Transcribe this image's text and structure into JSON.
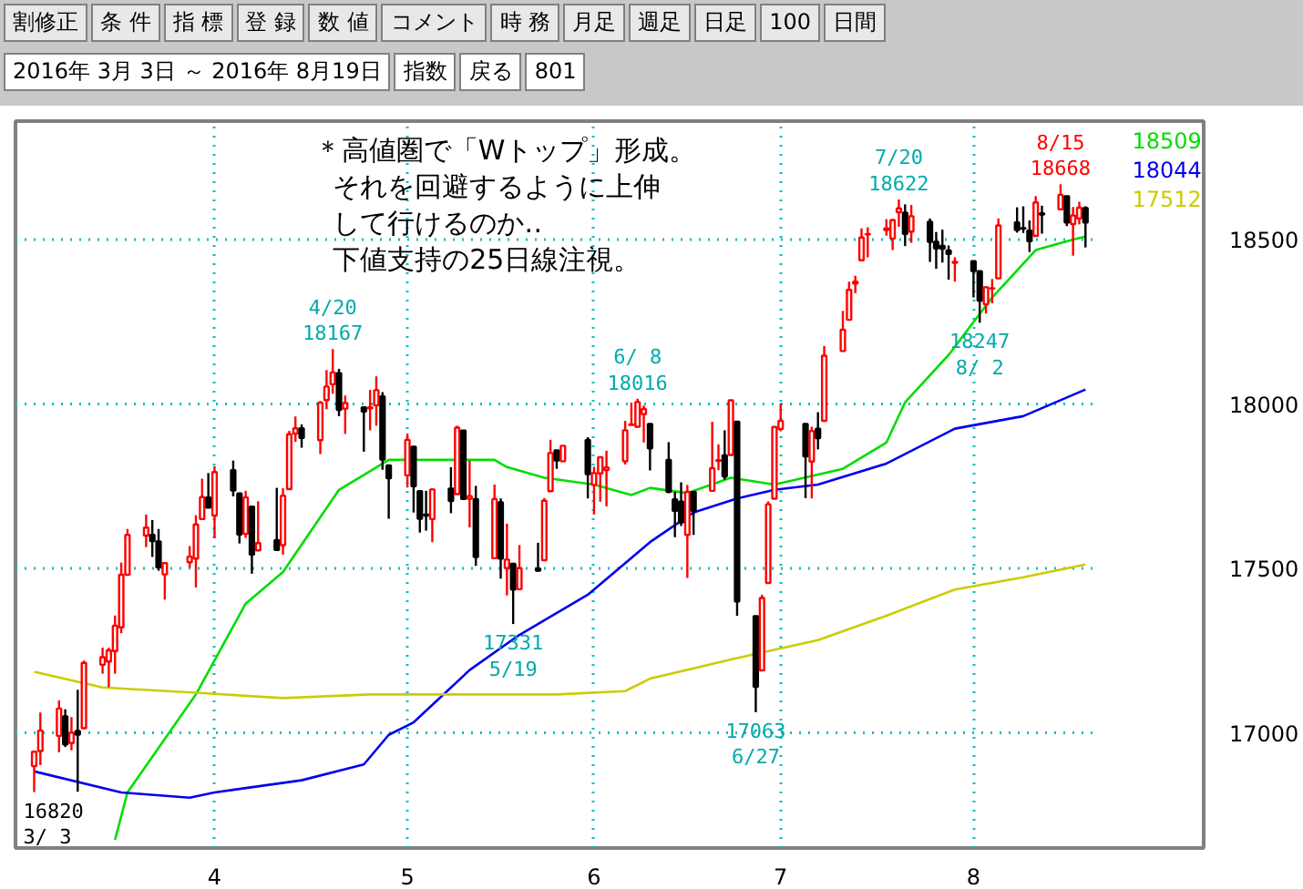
{
  "chart_data": {
    "type": "candlestick",
    "x": [
      "2016-03-03",
      "2016-03-04",
      "2016-03-07",
      "2016-03-08",
      "2016-03-09",
      "2016-03-10",
      "2016-03-11",
      "2016-03-14",
      "2016-03-15",
      "2016-03-16",
      "2016-03-17",
      "2016-03-18",
      "2016-03-21",
      "2016-03-22",
      "2016-03-23",
      "2016-03-24",
      "2016-03-28",
      "2016-03-29",
      "2016-03-30",
      "2016-03-31",
      "2016-04-01",
      "2016-04-04",
      "2016-04-05",
      "2016-04-06",
      "2016-04-07",
      "2016-04-08",
      "2016-04-11",
      "2016-04-12",
      "2016-04-13",
      "2016-04-14",
      "2016-04-15",
      "2016-04-18",
      "2016-04-19",
      "2016-04-20",
      "2016-04-21",
      "2016-04-22",
      "2016-04-25",
      "2016-04-26",
      "2016-04-27",
      "2016-04-28",
      "2016-04-29",
      "2016-05-02",
      "2016-05-03",
      "2016-05-04",
      "2016-05-05",
      "2016-05-06",
      "2016-05-09",
      "2016-05-10",
      "2016-05-11",
      "2016-05-12",
      "2016-05-13",
      "2016-05-16",
      "2016-05-17",
      "2016-05-18",
      "2016-05-19",
      "2016-05-20",
      "2016-05-23",
      "2016-05-24",
      "2016-05-25",
      "2016-05-26",
      "2016-05-27",
      "2016-05-31",
      "2016-06-01",
      "2016-06-02",
      "2016-06-03",
      "2016-06-06",
      "2016-06-07",
      "2016-06-08",
      "2016-06-09",
      "2016-06-10",
      "2016-06-13",
      "2016-06-14",
      "2016-06-15",
      "2016-06-16",
      "2016-06-17",
      "2016-06-20",
      "2016-06-21",
      "2016-06-22",
      "2016-06-23",
      "2016-06-24",
      "2016-06-27",
      "2016-06-28",
      "2016-06-29",
      "2016-06-30",
      "2016-07-01",
      "2016-07-05",
      "2016-07-06",
      "2016-07-07",
      "2016-07-08",
      "2016-07-11",
      "2016-07-12",
      "2016-07-13",
      "2016-07-14",
      "2016-07-15",
      "2016-07-18",
      "2016-07-19",
      "2016-07-20",
      "2016-07-21",
      "2016-07-22",
      "2016-07-25",
      "2016-07-26",
      "2016-07-27",
      "2016-07-28",
      "2016-07-29",
      "2016-08-01",
      "2016-08-02",
      "2016-08-03",
      "2016-08-04",
      "2016-08-05",
      "2016-08-08",
      "2016-08-09",
      "2016-08-10",
      "2016-08-11",
      "2016-08-12",
      "2016-08-15",
      "2016-08-16",
      "2016-08-17",
      "2016-08-18",
      "2016-08-19"
    ],
    "ohlc": [
      [
        16899,
        16945,
        16820,
        16943
      ],
      [
        16945,
        17062,
        16902,
        17007
      ],
      [
        16991,
        17099,
        16941,
        17074
      ],
      [
        17050,
        17072,
        16957,
        16965
      ],
      [
        16969,
        17048,
        16947,
        17001
      ],
      [
        17006,
        17131,
        16821,
        16995
      ],
      [
        17014,
        17220,
        17014,
        17213
      ],
      [
        17207,
        17259,
        17180,
        17230
      ],
      [
        17217,
        17259,
        17139,
        17251
      ],
      [
        17249,
        17357,
        17180,
        17326
      ],
      [
        17321,
        17518,
        17303,
        17481
      ],
      [
        17481,
        17620,
        17481,
        17602
      ],
      [
        17600,
        17664,
        17565,
        17624
      ],
      [
        17602,
        17647,
        17535,
        17583
      ],
      [
        17582,
        17620,
        17493,
        17503
      ],
      [
        17482,
        17516,
        17405,
        17516
      ],
      [
        17519,
        17568,
        17502,
        17536
      ],
      [
        17530,
        17662,
        17442,
        17634
      ],
      [
        17650,
        17773,
        17650,
        17717
      ],
      [
        17716,
        17790,
        17685,
        17685
      ],
      [
        17661,
        17811,
        17592,
        17793
      ],
      [
        17799,
        17828,
        17719,
        17737
      ],
      [
        17728,
        17728,
        17576,
        17603
      ],
      [
        17605,
        17736,
        17593,
        17716
      ],
      [
        17688,
        17688,
        17484,
        17542
      ],
      [
        17555,
        17704,
        17555,
        17577
      ],
      [
        17586,
        17745,
        17556,
        17556
      ],
      [
        17571,
        17744,
        17542,
        17721
      ],
      [
        17741,
        17918,
        17741,
        17908
      ],
      [
        17910,
        17962,
        17885,
        17926
      ],
      [
        17926,
        17938,
        17867,
        17897
      ],
      [
        17890,
        18009,
        17848,
        18004
      ],
      [
        18012,
        18103,
        17984,
        18053
      ],
      [
        18060,
        18167,
        18031,
        18096
      ],
      [
        18094,
        18107,
        17963,
        17982
      ],
      [
        17986,
        18026,
        17909,
        18003
      ],
      [
        17990,
        17990,
        17855,
        17977
      ],
      [
        17987,
        18043,
        17920,
        17990
      ],
      [
        17996,
        18084,
        17934,
        18042
      ],
      [
        18023,
        18036,
        17800,
        17831
      ],
      [
        17813,
        17814,
        17651,
        17774
      ],
      [
        17783,
        17910,
        17746,
        17891
      ],
      [
        17870,
        17870,
        17670,
        17750
      ],
      [
        17735,
        17738,
        17609,
        17651
      ],
      [
        17664,
        17736,
        17615,
        17661
      ],
      [
        17650,
        17744,
        17580,
        17740
      ],
      [
        17743,
        17808,
        17668,
        17705
      ],
      [
        17726,
        17934,
        17726,
        17928
      ],
      [
        17919,
        17919,
        17711,
        17711
      ],
      [
        17712,
        17827,
        17625,
        17720
      ],
      [
        17711,
        17751,
        17508,
        17535
      ],
      [
        17531,
        17755,
        17531,
        17711
      ],
      [
        17701,
        17713,
        17469,
        17530
      ],
      [
        17501,
        17636,
        17418,
        17527
      ],
      [
        17514,
        17514,
        17331,
        17436
      ],
      [
        17437,
        17571,
        17437,
        17501
      ],
      [
        17500,
        17578,
        17491,
        17493
      ],
      [
        17525,
        17714,
        17525,
        17706
      ],
      [
        17735,
        17891,
        17735,
        17851
      ],
      [
        17859,
        17860,
        17803,
        17828
      ],
      [
        17826,
        17873,
        17824,
        17873
      ],
      [
        17891,
        17899,
        17713,
        17787
      ],
      [
        17754,
        17809,
        17664,
        17790
      ],
      [
        17789,
        17838,
        17703,
        17838
      ],
      [
        17799,
        17858,
        17689,
        17807
      ],
      [
        17826,
        17949,
        17816,
        17920
      ],
      [
        17936,
        18004,
        17936,
        17938
      ],
      [
        17931,
        18016,
        17931,
        18006
      ],
      [
        17969,
        17995,
        17883,
        17985
      ],
      [
        17939,
        17939,
        17798,
        17865
      ],
      [
        17830,
        17884,
        17729,
        17733
      ],
      [
        17710,
        17733,
        17595,
        17675
      ],
      [
        17703,
        17762,
        17629,
        17640
      ],
      [
        17602,
        17754,
        17471,
        17733
      ],
      [
        17733,
        17733,
        17602,
        17675
      ],
      [
        17736,
        17946,
        17736,
        17805
      ],
      [
        17827,
        17877,
        17799,
        17829
      ],
      [
        17844,
        17920,
        17770,
        17780
      ],
      [
        17845,
        18011,
        17845,
        18011
      ],
      [
        17946,
        17946,
        17356,
        17400
      ],
      [
        17355,
        17355,
        17063,
        17140
      ],
      [
        17190,
        17420,
        17190,
        17410
      ],
      [
        17456,
        17704,
        17456,
        17695
      ],
      [
        17712,
        17930,
        17711,
        17930
      ],
      [
        17924,
        18002,
        17917,
        17949
      ],
      [
        17939,
        17939,
        17714,
        17841
      ],
      [
        17825,
        17931,
        17713,
        17918
      ],
      [
        17925,
        17975,
        17862,
        17896
      ],
      [
        17949,
        18176,
        17949,
        18147
      ],
      [
        18161,
        18283,
        18161,
        18226
      ],
      [
        18256,
        18372,
        18256,
        18347
      ],
      [
        18366,
        18390,
        18337,
        18372
      ],
      [
        18437,
        18534,
        18437,
        18506
      ],
      [
        18516,
        18537,
        18446,
        18517
      ],
      [
        18529,
        18562,
        18512,
        18534
      ],
      [
        18503,
        18563,
        18468,
        18559
      ],
      [
        18583,
        18622,
        18539,
        18595
      ],
      [
        18582,
        18607,
        18480,
        18517
      ],
      [
        18524,
        18605,
        18490,
        18571
      ],
      [
        18554,
        18564,
        18432,
        18493
      ],
      [
        18493,
        18523,
        18411,
        18473
      ],
      [
        18481,
        18530,
        18430,
        18472
      ],
      [
        18467,
        18482,
        18378,
        18456
      ],
      [
        18429,
        18446,
        18372,
        18432
      ],
      [
        18434,
        18434,
        18324,
        18404
      ],
      [
        18404,
        18404,
        18247,
        18314
      ],
      [
        18303,
        18358,
        18275,
        18355
      ],
      [
        18351,
        18380,
        18306,
        18352
      ],
      [
        18382,
        18564,
        18382,
        18543
      ],
      [
        18552,
        18598,
        18521,
        18529
      ],
      [
        18535,
        18601,
        18520,
        18533
      ],
      [
        18527,
        18558,
        18462,
        18495
      ],
      [
        18511,
        18632,
        18511,
        18613
      ],
      [
        18580,
        18603,
        18518,
        18576
      ],
      [
        18592,
        18668,
        18592,
        18636
      ],
      [
        18632,
        18632,
        18541,
        18552
      ],
      [
        18547,
        18599,
        18451,
        18573
      ],
      [
        18564,
        18615,
        18546,
        18597
      ],
      [
        18596,
        18601,
        18476,
        18552
      ]
    ],
    "colors": [
      "#ff0000",
      "#ff0000",
      "#ff0000",
      "#000000",
      "#ff0000",
      "#000000",
      "#ff0000",
      "#ff0000",
      "#ff0000",
      "#ff0000",
      "#ff0000",
      "#ff0000",
      "#ff0000",
      "#000000",
      "#000000",
      "#ff0000",
      "#ff0000",
      "#ff0000",
      "#ff0000",
      "#000000",
      "#ff0000",
      "#000000",
      "#000000",
      "#ff0000",
      "#000000",
      "#ff0000",
      "#000000",
      "#ff0000",
      "#ff0000",
      "#ff0000",
      "#000000",
      "#ff0000",
      "#ff0000",
      "#ff0000",
      "#000000",
      "#ff0000",
      "#000000",
      "#ff0000",
      "#ff0000",
      "#000000",
      "#000000",
      "#ff0000",
      "#000000",
      "#000000",
      "#000000",
      "#ff0000",
      "#000000",
      "#ff0000",
      "#000000",
      "#ff0000",
      "#000000",
      "#ff0000",
      "#000000",
      "#ff0000",
      "#000000",
      "#ff0000",
      "#000000",
      "#ff0000",
      "#ff0000",
      "#000000",
      "#ff0000",
      "#000000",
      "#ff0000",
      "#ff0000",
      "#ff0000",
      "#ff0000",
      "#ff0000",
      "#ff0000",
      "#ff0000",
      "#000000",
      "#000000",
      "#000000",
      "#000000",
      "#ff0000",
      "#000000",
      "#ff0000",
      "#ff0000",
      "#000000",
      "#ff0000",
      "#000000",
      "#000000",
      "#ff0000",
      "#ff0000",
      "#ff0000",
      "#ff0000",
      "#000000",
      "#ff0000",
      "#000000",
      "#ff0000",
      "#ff0000",
      "#ff0000",
      "#ff0000",
      "#ff0000",
      "#ff0000",
      "#ff0000",
      "#ff0000",
      "#ff0000",
      "#000000",
      "#ff0000",
      "#000000",
      "#000000",
      "#000000",
      "#000000",
      "#ff0000",
      "#000000",
      "#000000",
      "#ff0000",
      "#ff0000",
      "#ff0000",
      "#000000",
      "#000000",
      "#000000",
      "#ff0000",
      "#000000",
      "#ff0000",
      "#000000",
      "#ff0000",
      "#ff0000",
      "#000000"
    ],
    "series": [
      {
        "type": "line",
        "name": "18509",
        "color": "#00dd00",
        "x": [
          "2016-03-16",
          "2016-03-18",
          "2016-03-29",
          "2016-04-06",
          "2016-04-12",
          "2016-04-21",
          "2016-04-29",
          "2016-05-05",
          "2016-05-16",
          "2016-05-18",
          "2016-05-24",
          "2016-06-01",
          "2016-06-07",
          "2016-06-10",
          "2016-06-16",
          "2016-06-23",
          "2016-06-30",
          "2016-07-11",
          "2016-07-18",
          "2016-07-21",
          "2016-07-28",
          "2016-08-04",
          "2016-08-11",
          "2016-08-17",
          "2016-08-19"
        ],
        "values": [
          16675,
          16819,
          17117,
          17393,
          17489,
          17739,
          17830,
          17830,
          17830,
          17808,
          17776,
          17755,
          17723,
          17745,
          17729,
          17776,
          17755,
          17803,
          17883,
          18005,
          18149,
          18324,
          18468,
          18500,
          18509
        ]
      },
      {
        "type": "line",
        "name": "18044",
        "color": "#0000ee",
        "x": [
          "2016-03-03",
          "2016-03-17",
          "2016-03-28",
          "2016-04-01",
          "2016-04-15",
          "2016-04-25",
          "2016-04-29",
          "2016-05-03",
          "2016-05-12",
          "2016-05-20",
          "2016-05-31",
          "2016-06-10",
          "2016-06-17",
          "2016-06-24",
          "2016-06-30",
          "2016-07-07",
          "2016-07-18",
          "2016-07-29",
          "2016-08-09",
          "2016-08-19"
        ],
        "values": [
          16883,
          16819,
          16803,
          16819,
          16856,
          16904,
          16994,
          17032,
          17191,
          17298,
          17420,
          17580,
          17670,
          17713,
          17739,
          17755,
          17819,
          17925,
          17963,
          18044
        ]
      },
      {
        "type": "line",
        "name": "17512",
        "color": "#cccc00",
        "x": [
          "2016-03-03",
          "2016-03-14",
          "2016-03-29",
          "2016-04-12",
          "2016-04-26",
          "2016-05-26",
          "2016-06-06",
          "2016-06-10",
          "2016-06-23",
          "2016-07-07",
          "2016-07-18",
          "2016-07-29",
          "2016-08-09",
          "2016-08-19"
        ],
        "values": [
          17186,
          17138,
          17122,
          17106,
          17117,
          17117,
          17127,
          17165,
          17223,
          17282,
          17356,
          17436,
          17473,
          17512
        ]
      }
    ],
    "xlim": [
      "2016-02-29",
      "2016-09-07"
    ],
    "xticks": [
      {
        "value": "2016-04-01",
        "label": "4"
      },
      {
        "value": "2016-05-02",
        "label": "5"
      },
      {
        "value": "2016-06-01",
        "label": "6"
      },
      {
        "value": "2016-07-01",
        "label": "7"
      },
      {
        "value": "2016-08-01",
        "label": "8"
      }
    ],
    "ylim": [
      16650,
      18860
    ],
    "yticks": [
      17000,
      17500,
      18000,
      18500
    ],
    "grid": true,
    "legend": "right",
    "annotations": [
      "＊高値圏で「Wトップ」形成。",
      "それを回避するように上伸",
      "して行けるのか‥",
      "下値支持の25日線注視。",
      "割修正",
      "条 件",
      "指 標",
      "登 録",
      "数 値",
      "コメント",
      "時 務",
      "月足",
      "週足",
      "日足",
      "100",
      "日間",
      "2016年 3月 3日 ～ 2016年 8月19日",
      "指数",
      "戻る",
      "801",
      {
        "text": "16820\n3/ 3",
        "x": "2016-03-03",
        "y": 16820
      },
      {
        "text": "4/20\n18167",
        "x": "2016-04-20",
        "y": 18167
      },
      {
        "text": "17331\n5/19",
        "x": "2016-05-19",
        "y": 17331
      },
      {
        "text": "6/ 8\n18016",
        "x": "2016-06-08",
        "y": 18016
      },
      {
        "text": "17063\n6/27",
        "x": "2016-06-27",
        "y": 17063
      },
      {
        "text": "7/20\n18622",
        "x": "2016-07-20",
        "y": 18622
      },
      {
        "text": "18247\n8/ 2",
        "x": "2016-08-02",
        "y": 18247
      },
      {
        "text": "8/15\n18668",
        "x": "2016-08-15",
        "y": 18668
      }
    ]
  }
}
